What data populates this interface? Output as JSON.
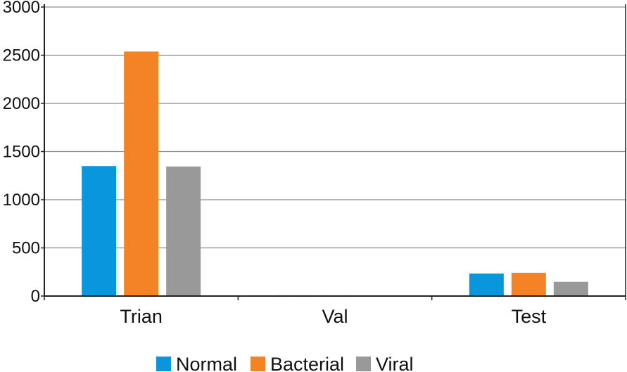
{
  "chart_data": {
    "type": "bar",
    "categories": [
      "Trian",
      "Val",
      "Test"
    ],
    "series": [
      {
        "name": "Normal",
        "color": "#0a96dd",
        "values": [
          1349,
          8,
          234
        ]
      },
      {
        "name": "Bacterial",
        "color": "#f48325",
        "values": [
          2538,
          8,
          242
        ]
      },
      {
        "name": "Viral",
        "color": "#999999",
        "values": [
          1345,
          0,
          148
        ]
      }
    ],
    "title": "",
    "xlabel": "",
    "ylabel": "",
    "ylim": [
      0,
      3000
    ],
    "yticks": [
      0,
      500,
      1000,
      1500,
      2000,
      2500,
      3000
    ],
    "grid": true,
    "legend": "bottom"
  }
}
